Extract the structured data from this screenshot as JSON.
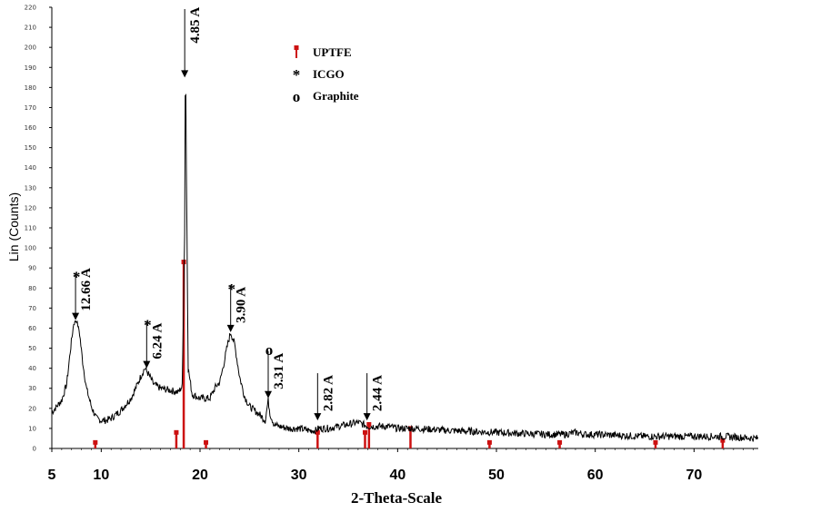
{
  "chart_data": {
    "type": "line",
    "xlabel": "2-Theta-Scale",
    "ylabel": "Lin (Counts)",
    "xlim": [
      5,
      76.5
    ],
    "ylim": [
      0,
      220
    ],
    "xticks": [
      5,
      10,
      20,
      30,
      40,
      50,
      60,
      70
    ],
    "yticks": [
      0,
      10,
      20,
      30,
      40,
      50,
      60,
      70,
      80,
      90,
      100,
      110,
      120,
      130,
      140,
      150,
      160,
      170,
      180,
      190,
      200,
      210,
      220
    ],
    "legend": {
      "placement": "top-center",
      "entries": [
        {
          "symbol": "marker",
          "label": "UPTFE",
          "color": "#cc1111"
        },
        {
          "symbol": "*",
          "label": "ICGO"
        },
        {
          "symbol": "o",
          "label": "Graphite"
        }
      ]
    },
    "pattern": {
      "name": "",
      "color": "#000000",
      "baseline_points": [
        [
          5,
          18
        ],
        [
          5.5,
          21
        ],
        [
          6,
          24
        ],
        [
          6.5,
          32
        ],
        [
          6.9,
          50
        ],
        [
          7.2,
          62
        ],
        [
          7.5,
          64
        ],
        [
          7.8,
          58
        ],
        [
          8.1,
          44
        ],
        [
          8.5,
          30
        ],
        [
          9,
          21
        ],
        [
          9.5,
          15
        ],
        [
          10,
          14
        ],
        [
          10.5,
          14
        ],
        [
          11,
          15
        ],
        [
          11.5,
          17
        ],
        [
          12,
          19
        ],
        [
          12.5,
          22
        ],
        [
          13,
          25
        ],
        [
          13.5,
          30
        ],
        [
          14,
          36
        ],
        [
          14.4,
          40
        ],
        [
          14.8,
          37
        ],
        [
          15.3,
          32
        ],
        [
          16,
          30
        ],
        [
          17,
          29
        ],
        [
          17.8,
          28
        ],
        [
          18.2,
          31
        ],
        [
          18.45,
          110
        ],
        [
          18.52,
          203
        ],
        [
          18.6,
          150
        ],
        [
          18.8,
          40
        ],
        [
          19.2,
          27
        ],
        [
          20,
          25
        ],
        [
          21,
          25
        ],
        [
          21.6,
          31
        ],
        [
          22,
          33
        ],
        [
          22.4,
          42
        ],
        [
          22.8,
          52
        ],
        [
          23.1,
          58
        ],
        [
          23.5,
          52
        ],
        [
          24,
          36
        ],
        [
          24.5,
          26
        ],
        [
          25,
          21
        ],
        [
          26,
          17
        ],
        [
          26.6,
          14
        ],
        [
          26.9,
          24
        ],
        [
          27.1,
          17
        ],
        [
          27.5,
          12
        ],
        [
          28,
          11
        ],
        [
          29,
          10
        ],
        [
          30,
          10
        ],
        [
          31,
          9
        ],
        [
          31.7,
          9
        ],
        [
          32,
          10
        ],
        [
          33,
          10
        ],
        [
          34,
          11
        ],
        [
          35,
          12
        ],
        [
          36,
          13
        ],
        [
          37,
          11
        ],
        [
          38,
          11
        ],
        [
          39,
          11
        ],
        [
          40,
          10
        ],
        [
          42,
          10
        ],
        [
          45,
          9
        ],
        [
          50,
          8
        ],
        [
          55,
          7
        ],
        [
          57,
          7
        ],
        [
          58,
          8
        ],
        [
          59,
          7
        ],
        [
          60,
          7
        ],
        [
          65,
          6
        ],
        [
          70,
          6
        ],
        [
          73,
          6
        ],
        [
          76.5,
          5
        ]
      ]
    },
    "reference_sticks": {
      "name": "UPTFE",
      "color": "#cc1111",
      "x": [
        9.4,
        17.6,
        18.35,
        20.6,
        31.9,
        36.7,
        37.1,
        41.3,
        49.3,
        56.4,
        66.1,
        72.9
      ],
      "y": [
        3,
        8,
        93,
        3,
        8,
        8,
        12,
        10,
        3,
        3,
        3,
        4
      ]
    },
    "annotations": [
      {
        "x": 7.4,
        "y": 64,
        "label": "12.66 A",
        "symbol": "*"
      },
      {
        "x": 14.6,
        "y": 40,
        "label": "6.24 A",
        "symbol": "*"
      },
      {
        "x": 18.45,
        "y": 185,
        "label": "4.85 A",
        "symbol": ""
      },
      {
        "x": 23.1,
        "y": 58,
        "label": "3.90 A",
        "symbol": "*"
      },
      {
        "x": 26.9,
        "y": 25,
        "label": "3.31 A",
        "symbol": "o"
      },
      {
        "x": 31.9,
        "y": 14,
        "label": "2.82 A",
        "symbol": ""
      },
      {
        "x": 36.9,
        "y": 14,
        "label": "2.44 A",
        "symbol": ""
      }
    ]
  }
}
